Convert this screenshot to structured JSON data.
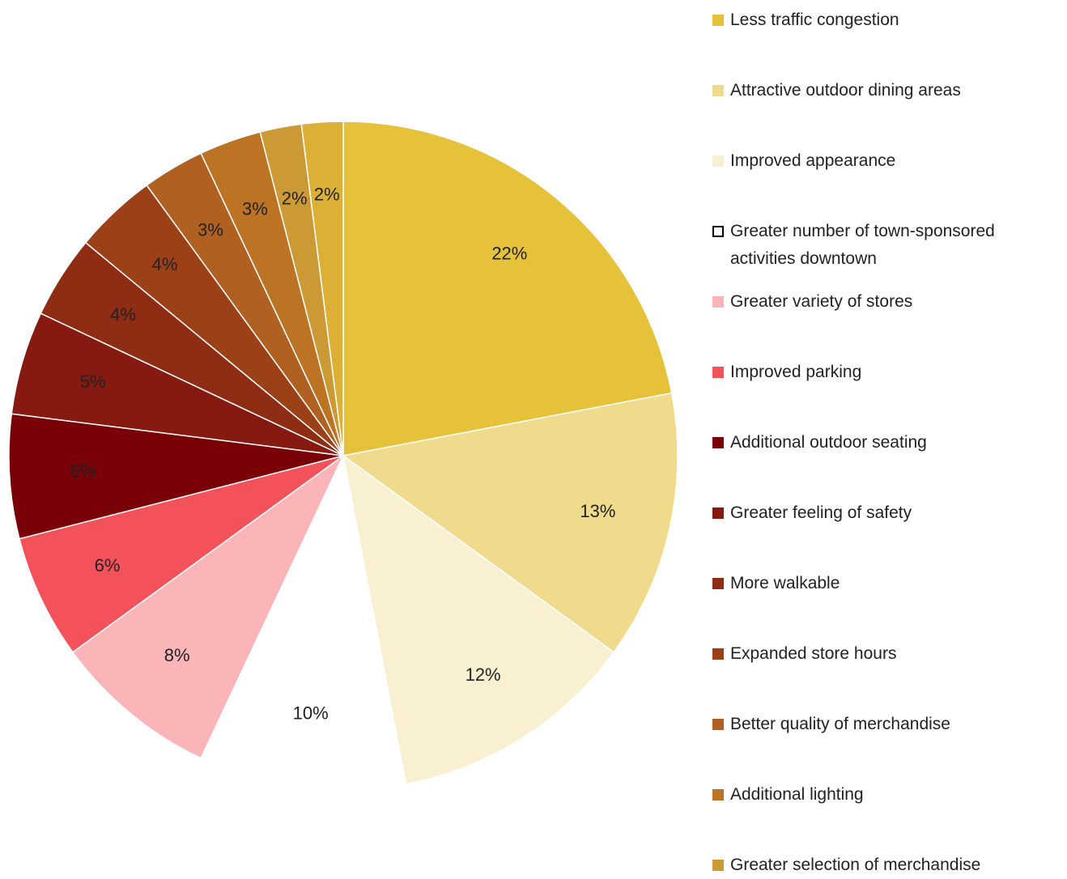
{
  "chart_data": {
    "type": "pie",
    "categories": [
      "Less traffic congestion",
      "Attractive outdoor dining areas",
      "Improved appearance",
      "Greater number of town-sponsored activities downtown",
      "Greater variety of stores",
      "Improved parking",
      "Additional outdoor seating",
      "Greater feeling of safety",
      "More walkable",
      "Expanded store hours",
      "Better quality of merchandise",
      "Additional lighting",
      "Greater selection of merchandise",
      null
    ],
    "values": [
      22,
      13,
      12,
      10,
      8,
      6,
      6,
      5,
      4,
      4,
      3,
      3,
      2,
      2
    ],
    "value_labels": [
      "22%",
      "13%",
      "12%",
      "10%",
      "8%",
      "6%",
      "6%",
      "5%",
      "4%",
      "4%",
      "3%",
      "3%",
      "2%",
      "2%"
    ],
    "colors": [
      "#e6c23a",
      "#f0da8c",
      "#f9f0d2",
      "#ffffff",
      "#fbb5b8",
      "#f4525a",
      "#7a0008",
      "#861a10",
      "#8e2c14",
      "#9c4018",
      "#b06020",
      "#bc7424",
      "#cc9a34",
      "#dcb034"
    ],
    "legend": "right"
  }
}
